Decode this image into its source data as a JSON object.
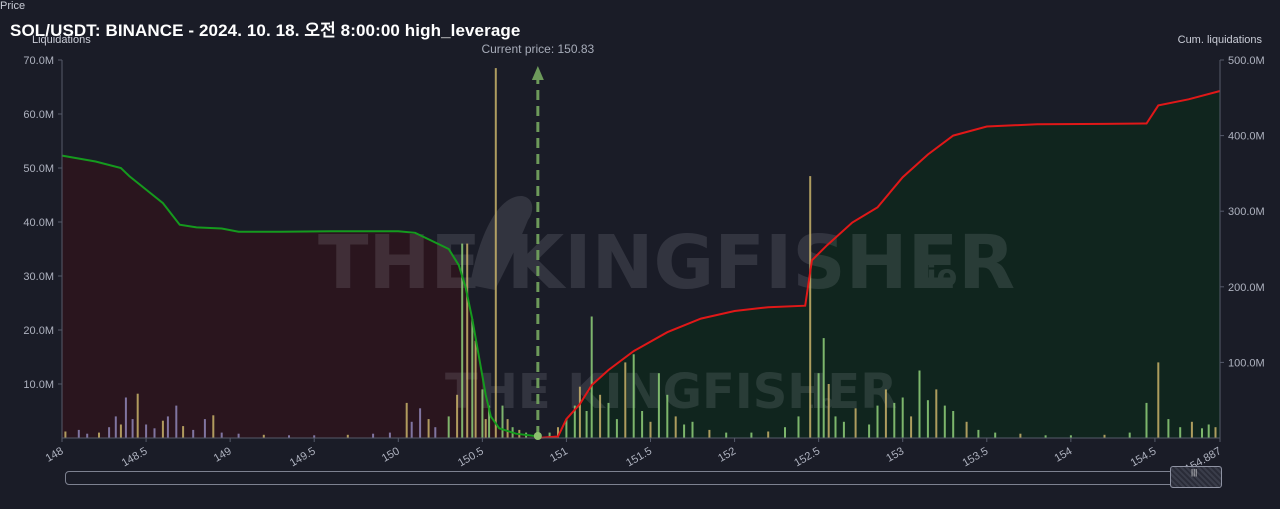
{
  "title": "SOL/USDT: BINANCE - 2024. 10. 18. 오전 8:00:00 high_leverage",
  "left_axis_label": "Liquidations",
  "right_axis_label": "Cum. liquidations",
  "x_axis_label": "Price",
  "current_price_label": "Current price: 150.83",
  "watermark": {
    "brand": "THE KINGFISHER",
    "suffix": ".io"
  },
  "colors": {
    "background": "#1a1c27",
    "short_cum_line": "#e01818",
    "long_cum_line": "#159a1e",
    "short_fill": "#10261e",
    "long_fill": "#2b151d",
    "bar_green": "#8fd07a",
    "bar_yellow": "#c9b36a",
    "bar_purple": "#8f86b8",
    "current_price": "#6d9a5b"
  },
  "chart_data": {
    "type": "bar",
    "title": "SOL/USDT: BINANCE - 2024. 10. 18. 오전 8:00:00 high_leverage",
    "xlabel": "Price",
    "ylabel": "Liquidations",
    "y2label": "Cum. liquidations",
    "xlim": [
      148,
      154.887
    ],
    "ylim": [
      0,
      70000000
    ],
    "y2lim": [
      0,
      500000000
    ],
    "x_ticks": [
      "148",
      "148.5",
      "149",
      "149.5",
      "150",
      "150.5",
      "151",
      "151.5",
      "152",
      "152.5",
      "153",
      "153.5",
      "154",
      "154.5",
      "154.887"
    ],
    "y_ticks": [
      "10.0M",
      "20.0M",
      "30.0M",
      "40.0M",
      "50.0M",
      "60.0M",
      "70.0M"
    ],
    "y2_ticks": [
      "100.0M",
      "200.0M",
      "300.0M",
      "400.0M",
      "500.0M"
    ],
    "current_price": 150.83,
    "grid": false,
    "long_liquidation_bars": [
      {
        "x": 148.02,
        "y": 1.2
      },
      {
        "x": 148.1,
        "y": 1.5
      },
      {
        "x": 148.15,
        "y": 0.8
      },
      {
        "x": 148.22,
        "y": 1.0
      },
      {
        "x": 148.28,
        "y": 2.0
      },
      {
        "x": 148.32,
        "y": 4.0
      },
      {
        "x": 148.35,
        "y": 2.5
      },
      {
        "x": 148.38,
        "y": 7.5
      },
      {
        "x": 148.42,
        "y": 3.5
      },
      {
        "x": 148.45,
        "y": 8.2
      },
      {
        "x": 148.5,
        "y": 2.5
      },
      {
        "x": 148.55,
        "y": 1.8
      },
      {
        "x": 148.6,
        "y": 3.2
      },
      {
        "x": 148.63,
        "y": 4.0
      },
      {
        "x": 148.68,
        "y": 6.0
      },
      {
        "x": 148.72,
        "y": 2.2
      },
      {
        "x": 148.78,
        "y": 1.5
      },
      {
        "x": 148.85,
        "y": 3.5
      },
      {
        "x": 148.9,
        "y": 4.2
      },
      {
        "x": 148.95,
        "y": 1.0
      },
      {
        "x": 149.05,
        "y": 0.8
      },
      {
        "x": 149.2,
        "y": 0.6
      },
      {
        "x": 149.35,
        "y": 0.5
      },
      {
        "x": 149.5,
        "y": 0.5
      },
      {
        "x": 149.7,
        "y": 0.6
      },
      {
        "x": 149.85,
        "y": 0.8
      },
      {
        "x": 149.95,
        "y": 1.0
      },
      {
        "x": 150.05,
        "y": 6.5
      },
      {
        "x": 150.08,
        "y": 3.0
      },
      {
        "x": 150.13,
        "y": 5.5
      },
      {
        "x": 150.18,
        "y": 3.5
      },
      {
        "x": 150.22,
        "y": 2.0
      },
      {
        "x": 150.3,
        "y": 4.0
      },
      {
        "x": 150.35,
        "y": 8.0
      },
      {
        "x": 150.38,
        "y": 36.0
      },
      {
        "x": 150.41,
        "y": 36.0
      },
      {
        "x": 150.44,
        "y": 22.0
      },
      {
        "x": 150.46,
        "y": 18.0
      },
      {
        "x": 150.5,
        "y": 9.0
      },
      {
        "x": 150.52,
        "y": 3.5
      },
      {
        "x": 150.54,
        "y": 6.0
      },
      {
        "x": 150.58,
        "y": 68.5
      },
      {
        "x": 150.62,
        "y": 6.0
      },
      {
        "x": 150.65,
        "y": 3.5
      },
      {
        "x": 150.68,
        "y": 2.0
      },
      {
        "x": 150.72,
        "y": 1.5
      },
      {
        "x": 150.76,
        "y": 1.0
      }
    ],
    "short_liquidation_bars": [
      {
        "x": 150.9,
        "y": 1.0
      },
      {
        "x": 150.95,
        "y": 2.0
      },
      {
        "x": 151.0,
        "y": 3.5
      },
      {
        "x": 151.05,
        "y": 6.0
      },
      {
        "x": 151.08,
        "y": 9.5
      },
      {
        "x": 151.12,
        "y": 5.0
      },
      {
        "x": 151.15,
        "y": 22.5
      },
      {
        "x": 151.2,
        "y": 8.0
      },
      {
        "x": 151.25,
        "y": 6.5
      },
      {
        "x": 151.3,
        "y": 3.5
      },
      {
        "x": 151.35,
        "y": 14.0
      },
      {
        "x": 151.4,
        "y": 15.5
      },
      {
        "x": 151.45,
        "y": 5.0
      },
      {
        "x": 151.5,
        "y": 3.0
      },
      {
        "x": 151.55,
        "y": 12.0
      },
      {
        "x": 151.6,
        "y": 8.0
      },
      {
        "x": 151.65,
        "y": 4.0
      },
      {
        "x": 151.7,
        "y": 2.5
      },
      {
        "x": 151.75,
        "y": 3.0
      },
      {
        "x": 151.85,
        "y": 1.5
      },
      {
        "x": 151.95,
        "y": 1.0
      },
      {
        "x": 152.1,
        "y": 1.0
      },
      {
        "x": 152.2,
        "y": 1.2
      },
      {
        "x": 152.3,
        "y": 2.0
      },
      {
        "x": 152.38,
        "y": 4.0
      },
      {
        "x": 152.45,
        "y": 48.5
      },
      {
        "x": 152.5,
        "y": 12.0
      },
      {
        "x": 152.53,
        "y": 18.5
      },
      {
        "x": 152.56,
        "y": 10.0
      },
      {
        "x": 152.6,
        "y": 4.0
      },
      {
        "x": 152.65,
        "y": 3.0
      },
      {
        "x": 152.72,
        "y": 5.5
      },
      {
        "x": 152.8,
        "y": 2.5
      },
      {
        "x": 152.85,
        "y": 6.0
      },
      {
        "x": 152.9,
        "y": 9.0
      },
      {
        "x": 152.95,
        "y": 6.5
      },
      {
        "x": 153.0,
        "y": 7.5
      },
      {
        "x": 153.05,
        "y": 4.0
      },
      {
        "x": 153.1,
        "y": 12.5
      },
      {
        "x": 153.15,
        "y": 7.0
      },
      {
        "x": 153.2,
        "y": 9.0
      },
      {
        "x": 153.25,
        "y": 6.0
      },
      {
        "x": 153.3,
        "y": 5.0
      },
      {
        "x": 153.38,
        "y": 3.0
      },
      {
        "x": 153.45,
        "y": 1.5
      },
      {
        "x": 153.55,
        "y": 1.0
      },
      {
        "x": 153.7,
        "y": 0.8
      },
      {
        "x": 153.85,
        "y": 0.5
      },
      {
        "x": 154.0,
        "y": 0.5
      },
      {
        "x": 154.2,
        "y": 0.6
      },
      {
        "x": 154.35,
        "y": 1.0
      },
      {
        "x": 154.45,
        "y": 6.5
      },
      {
        "x": 154.52,
        "y": 14.0
      },
      {
        "x": 154.58,
        "y": 3.5
      },
      {
        "x": 154.65,
        "y": 2.0
      },
      {
        "x": 154.72,
        "y": 3.0
      },
      {
        "x": 154.78,
        "y": 1.8
      },
      {
        "x": 154.82,
        "y": 2.5
      },
      {
        "x": 154.86,
        "y": 2.0
      }
    ],
    "long_cumulative": [
      {
        "x": 148.0,
        "y": 52.3
      },
      {
        "x": 148.2,
        "y": 51.2
      },
      {
        "x": 148.35,
        "y": 50.0
      },
      {
        "x": 148.4,
        "y": 48.5
      },
      {
        "x": 148.5,
        "y": 46.0
      },
      {
        "x": 148.6,
        "y": 43.5
      },
      {
        "x": 148.7,
        "y": 39.5
      },
      {
        "x": 148.8,
        "y": 39.0
      },
      {
        "x": 148.95,
        "y": 38.8
      },
      {
        "x": 149.05,
        "y": 38.2
      },
      {
        "x": 149.3,
        "y": 38.2
      },
      {
        "x": 149.6,
        "y": 38.3
      },
      {
        "x": 150.0,
        "y": 38.3
      },
      {
        "x": 150.1,
        "y": 38.0
      },
      {
        "x": 150.2,
        "y": 36.5
      },
      {
        "x": 150.3,
        "y": 35.0
      },
      {
        "x": 150.36,
        "y": 32.0
      },
      {
        "x": 150.4,
        "y": 28.0
      },
      {
        "x": 150.44,
        "y": 22.0
      },
      {
        "x": 150.48,
        "y": 15.0
      },
      {
        "x": 150.52,
        "y": 8.0
      },
      {
        "x": 150.55,
        "y": 4.0
      },
      {
        "x": 150.6,
        "y": 1.8
      },
      {
        "x": 150.7,
        "y": 0.8
      },
      {
        "x": 150.83,
        "y": 0.3
      }
    ],
    "short_cumulative": [
      {
        "x": 150.83,
        "y": 0.0
      },
      {
        "x": 150.95,
        "y": 2.0
      },
      {
        "x": 151.0,
        "y": 25.0
      },
      {
        "x": 151.08,
        "y": 45.0
      },
      {
        "x": 151.15,
        "y": 70.0
      },
      {
        "x": 151.25,
        "y": 90.0
      },
      {
        "x": 151.4,
        "y": 115.0
      },
      {
        "x": 151.6,
        "y": 140.0
      },
      {
        "x": 151.8,
        "y": 158.0
      },
      {
        "x": 152.0,
        "y": 168.0
      },
      {
        "x": 152.2,
        "y": 173.0
      },
      {
        "x": 152.42,
        "y": 175.0
      },
      {
        "x": 152.46,
        "y": 235.0
      },
      {
        "x": 152.55,
        "y": 255.0
      },
      {
        "x": 152.7,
        "y": 285.0
      },
      {
        "x": 152.85,
        "y": 305.0
      },
      {
        "x": 153.0,
        "y": 345.0
      },
      {
        "x": 153.15,
        "y": 375.0
      },
      {
        "x": 153.3,
        "y": 400.0
      },
      {
        "x": 153.5,
        "y": 412.0
      },
      {
        "x": 153.8,
        "y": 415.0
      },
      {
        "x": 154.2,
        "y": 415.5
      },
      {
        "x": 154.45,
        "y": 416.0
      },
      {
        "x": 154.52,
        "y": 440.0
      },
      {
        "x": 154.7,
        "y": 448.0
      },
      {
        "x": 154.887,
        "y": 459.0
      }
    ],
    "units_note_scale": "y values in millions"
  }
}
